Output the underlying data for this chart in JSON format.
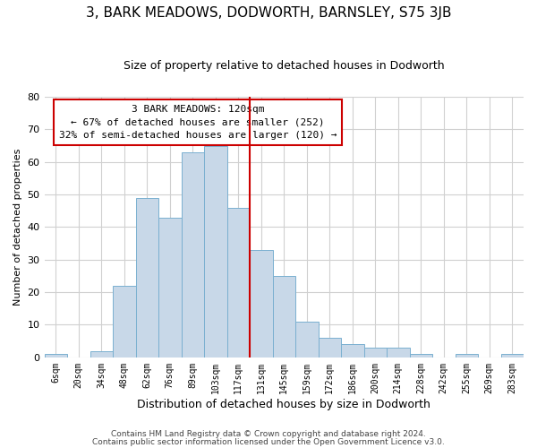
{
  "title": "3, BARK MEADOWS, DODWORTH, BARNSLEY, S75 3JB",
  "subtitle": "Size of property relative to detached houses in Dodworth",
  "xlabel": "Distribution of detached houses by size in Dodworth",
  "ylabel": "Number of detached properties",
  "bin_labels": [
    "6sqm",
    "20sqm",
    "34sqm",
    "48sqm",
    "62sqm",
    "76sqm",
    "89sqm",
    "103sqm",
    "117sqm",
    "131sqm",
    "145sqm",
    "159sqm",
    "172sqm",
    "186sqm",
    "200sqm",
    "214sqm",
    "228sqm",
    "242sqm",
    "255sqm",
    "269sqm",
    "283sqm"
  ],
  "bar_heights": [
    1,
    0,
    2,
    22,
    49,
    43,
    63,
    65,
    46,
    33,
    25,
    11,
    6,
    4,
    3,
    3,
    1,
    0,
    1,
    0,
    1
  ],
  "bar_color": "#c8d8e8",
  "bar_edgecolor": "#7ab0d0",
  "vline_x_idx": 8.5,
  "vline_color": "#cc0000",
  "annotation_box_text": "3 BARK MEADOWS: 120sqm\n← 67% of detached houses are smaller (252)\n32% of semi-detached houses are larger (120) →",
  "annotation_box_edgecolor": "#cc0000",
  "ylim": [
    0,
    80
  ],
  "yticks": [
    0,
    10,
    20,
    30,
    40,
    50,
    60,
    70,
    80
  ],
  "footer_line1": "Contains HM Land Registry data © Crown copyright and database right 2024.",
  "footer_line2": "Contains public sector information licensed under the Open Government Licence v3.0.",
  "background_color": "#ffffff",
  "grid_color": "#d0d0d0"
}
